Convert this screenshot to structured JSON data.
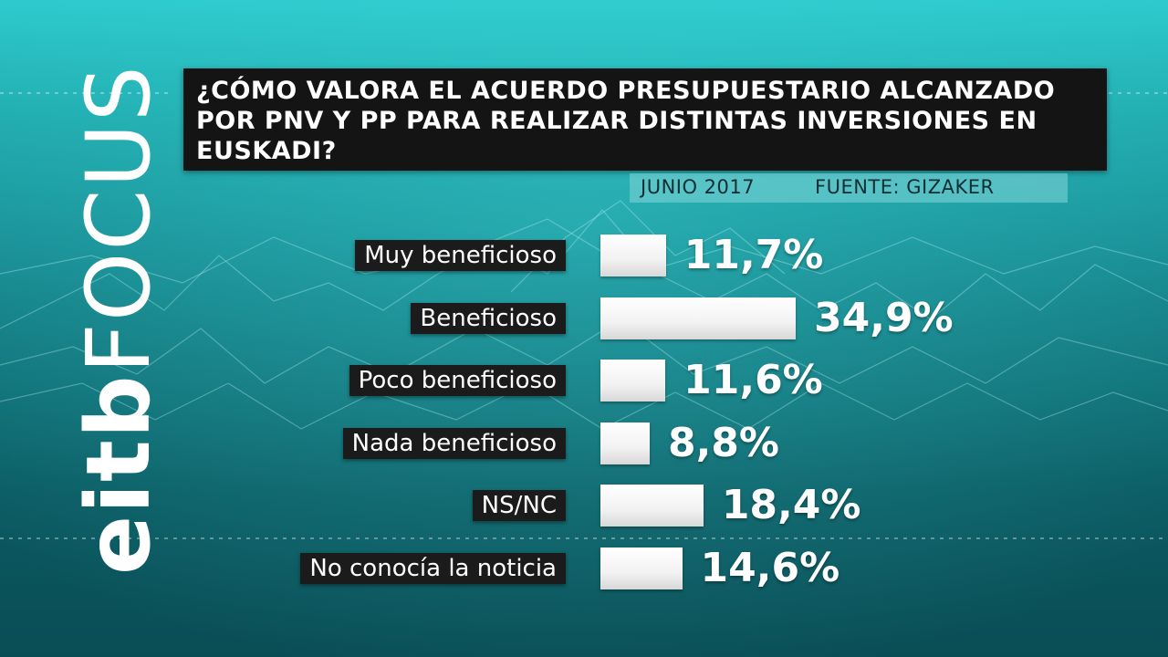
{
  "logo": {
    "part1": "eitb",
    "part2": "FOCUS"
  },
  "header": {
    "title": "¿CÓMO VALORA EL ACUERDO PRESUPUESTARIO ALCANZADO POR PNV Y PP PARA REALIZAR DISTINTAS INVERSIONES EN EUSKADI?",
    "date": "JUNIO 2017",
    "source": "FUENTE: GIZAKER"
  },
  "colors": {
    "background": "#137f86",
    "bar": "#ffffff",
    "label_bg": "#1b1b1b",
    "title_bg": "#141414"
  },
  "chart_data": {
    "type": "bar",
    "orientation": "horizontal",
    "title": "¿CÓMO VALORA EL ACUERDO PRESUPUESTARIO ALCANZADO POR PNV Y PP PARA REALIZAR DISTINTAS INVERSIONES EN EUSKADI?",
    "categories": [
      "Muy beneficioso",
      "Beneficioso",
      "Poco beneficioso",
      "Nada beneficioso",
      "NS/NC",
      "No conocía la noticia"
    ],
    "values": [
      11.7,
      34.9,
      11.6,
      8.8,
      18.4,
      14.6
    ],
    "value_labels": [
      "11,7%",
      "34,9%",
      "11,6%",
      "8,8%",
      "18,4%",
      "14,6%"
    ],
    "unit": "%",
    "xlim": [
      0,
      34.9
    ]
  }
}
